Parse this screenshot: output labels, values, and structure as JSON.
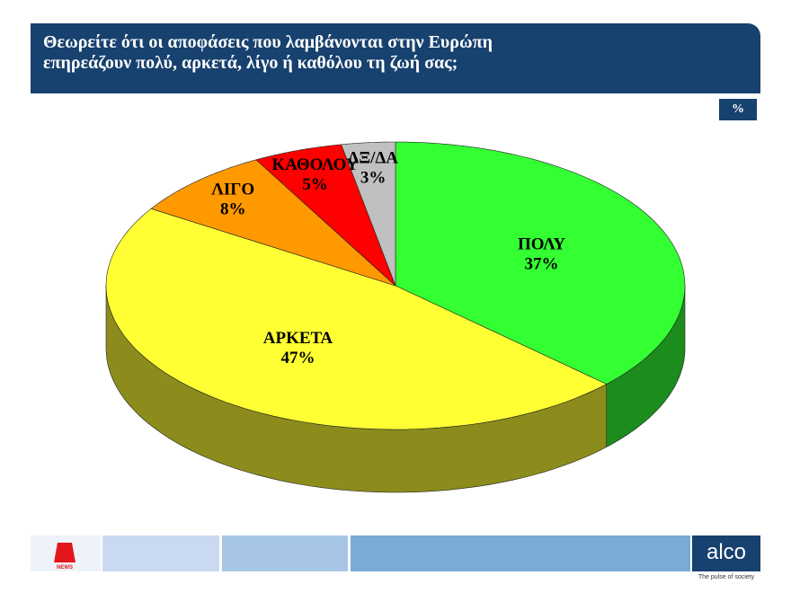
{
  "chart_data": {
    "type": "pie",
    "title": "Θεωρείτε ότι οι αποφάσεις που λαμβάνονται στην Ευρώπη\nεπηρεάζουν πολύ, αρκετά, λίγο ή καθόλου τη ζωή σας;",
    "unit_badge": "%",
    "categories": [
      "ΠΟΛΥ",
      "ΑΡΚΕΤΑ",
      "ΛΙΓΟ",
      "ΚΑΘΟΛΟΥ",
      "ΔΞ/ΔΑ"
    ],
    "values": [
      37,
      47,
      8,
      5,
      3
    ],
    "value_labels": [
      "37%",
      "47%",
      "8%",
      "5%",
      "3%"
    ],
    "colors": [
      "#33ff33",
      "#ffff33",
      "#ff9900",
      "#ff0000",
      "#c0c0c0"
    ]
  },
  "footer": {
    "logo_text": "NEWS",
    "brand": "alco",
    "tagline": "The pulse of society"
  }
}
